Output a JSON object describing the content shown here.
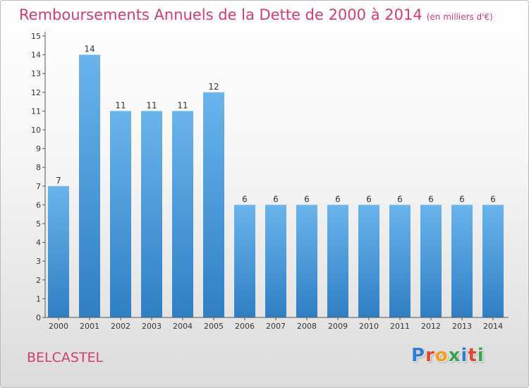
{
  "header": {
    "title": "Remboursements Annuels de la Dette de 2000 à 2014",
    "unit": "(en milliers d'€)"
  },
  "footer": {
    "place": "BELCASTEL",
    "logo_text": "Proxiti",
    "logo_colors": [
      "#2f7fd1",
      "#e2462c",
      "#f0a020",
      "#3aa64a",
      "#2f7fd1",
      "#e2462c",
      "#3aa64a"
    ]
  },
  "colors": {
    "title": "#d63a6e",
    "bar_top": "#6ab4ec",
    "bar_bottom": "#2f7fc4",
    "axis": "#555555",
    "tick_text": "#333333"
  },
  "chart_data": {
    "type": "bar",
    "categories": [
      "2000",
      "2001",
      "2002",
      "2003",
      "2004",
      "2005",
      "2006",
      "2007",
      "2008",
      "2009",
      "2010",
      "2011",
      "2012",
      "2013",
      "2014"
    ],
    "values": [
      7,
      14,
      11,
      11,
      11,
      12,
      6,
      6,
      6,
      6,
      6,
      6,
      6,
      6,
      6
    ],
    "ylim": [
      0,
      15
    ],
    "yticks": [
      0,
      1,
      2,
      3,
      4,
      5,
      6,
      7,
      8,
      9,
      10,
      11,
      12,
      13,
      14,
      15
    ],
    "grid": false,
    "data_labels": true
  }
}
